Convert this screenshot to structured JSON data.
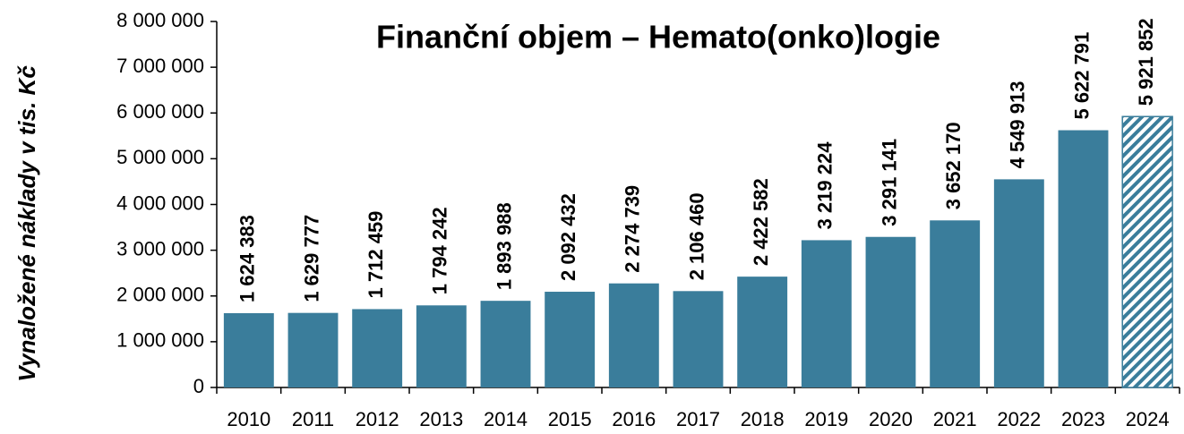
{
  "chart_data": {
    "type": "bar",
    "title": "Finanční objem – Hemato(onko)logie",
    "y_label": "Vynaložené náklady v tis. Kč",
    "categories": [
      "2010",
      "2011",
      "2012",
      "2013",
      "2014",
      "2015",
      "2016",
      "2017",
      "2018",
      "2019",
      "2020",
      "2021",
      "2022",
      "2023",
      "2024"
    ],
    "values": [
      1624383,
      1629777,
      1712459,
      1794242,
      1893988,
      2092432,
      2274739,
      2106460,
      2422582,
      3219224,
      3291141,
      3652170,
      4549913,
      5622791,
      5921852
    ],
    "value_labels": [
      "1 624 383",
      "1 629 777",
      "1 712 459",
      "1 794 242",
      "1 893 988",
      "2 092 432",
      "2 274 739",
      "2 106 460",
      "2 422 582",
      "3 219 224",
      "3 291 141",
      "3 652 170",
      "4 549 913",
      "5 622 791",
      "5 921 852"
    ],
    "color": "#3a7d9b",
    "hatched_last": true,
    "ylim": [
      0,
      8000000
    ],
    "yticks": [
      0,
      {
        "value": 1000000,
        "label": "1 000 000"
      },
      {
        "value": 2000000,
        "label": "2 000 000"
      },
      {
        "value": 3000000,
        "label": "3 000 000"
      },
      {
        "value": 4000000,
        "label": "4 000 000"
      },
      {
        "value": 5000000,
        "label": "5 000 000"
      },
      {
        "value": 6000000,
        "label": "6 000 000"
      },
      {
        "value": 7000000,
        "label": "7 000 000"
      },
      {
        "value": 8000000,
        "label": "8 000 000"
      }
    ],
    "grid": false
  }
}
